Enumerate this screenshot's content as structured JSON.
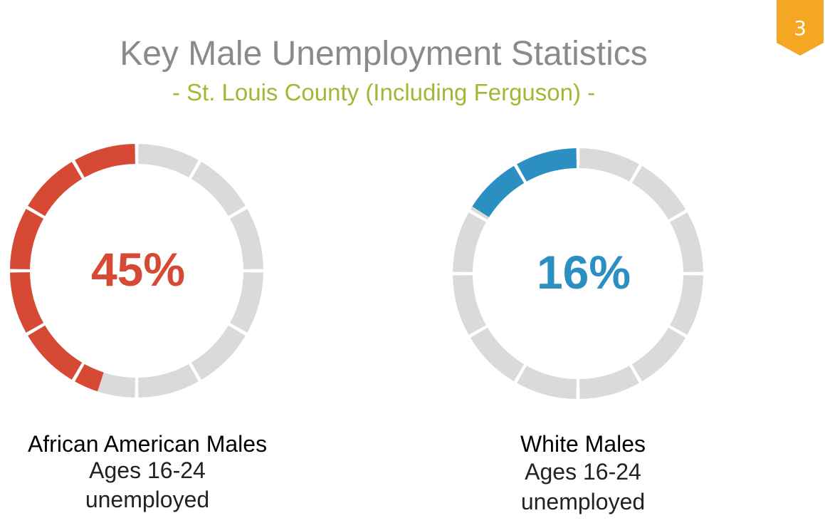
{
  "slide_number": "3",
  "title": "Key Male Unemployment Statistics",
  "subtitle": "- St. Louis County (Including Ferguson) -",
  "colors": {
    "badge": "#f5a623",
    "title": "#8a8a8a",
    "subtitle": "#a2b835",
    "track": "#dadada",
    "african_american": "#d64a35",
    "white": "#2b8fc2"
  },
  "chart_data": [
    {
      "type": "pie",
      "style": "segmented-donut",
      "segments_total": 12,
      "value": 45,
      "value_label": "45%",
      "color": "#d64a35",
      "label": "African American Males",
      "sublabel_line1": "Ages 16-24",
      "sublabel_line2": "unemployed"
    },
    {
      "type": "pie",
      "style": "segmented-donut",
      "segments_total": 12,
      "value": 16,
      "value_label": "16%",
      "color": "#2b8fc2",
      "label": "White Males",
      "sublabel_line1": "Ages 16-24",
      "sublabel_line2": "unemployed"
    }
  ]
}
